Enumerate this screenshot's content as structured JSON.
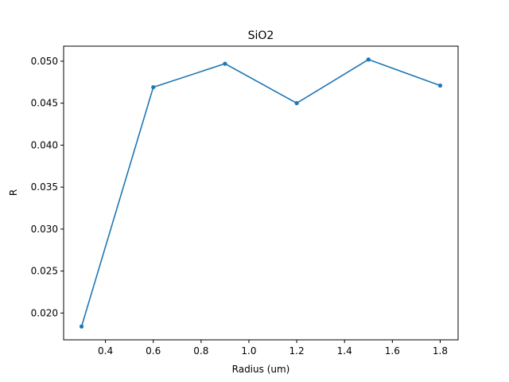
{
  "chart_data": {
    "type": "line",
    "title": "SiO2",
    "xlabel": "Radius (um)",
    "ylabel": "R",
    "x": [
      0.3,
      0.6,
      0.9,
      1.2,
      1.5,
      1.8
    ],
    "series": [
      {
        "values": [
          0.0184,
          0.0469,
          0.0497,
          0.045,
          0.0502,
          0.0471
        ]
      }
    ],
    "xlim": [
      0.225,
      1.875
    ],
    "ylim": [
      0.01681,
      0.05179
    ],
    "xticks": [
      0.4,
      0.6,
      0.8,
      1.0,
      1.2,
      1.4,
      1.6,
      1.8
    ],
    "xtick_labels": [
      "0.4",
      "0.6",
      "0.8",
      "1.0",
      "1.2",
      "1.4",
      "1.6",
      "1.8"
    ],
    "yticks": [
      0.02,
      0.025,
      0.03,
      0.035,
      0.04,
      0.045,
      0.05
    ],
    "ytick_labels": [
      "0.020",
      "0.025",
      "0.030",
      "0.035",
      "0.040",
      "0.045",
      "0.050"
    ],
    "grid": false,
    "marker": "dot",
    "color": "#1f77b4"
  }
}
